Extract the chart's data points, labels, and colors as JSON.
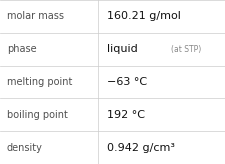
{
  "rows": [
    {
      "label": "molar mass",
      "value": "160.21 g/mol",
      "value2": null
    },
    {
      "label": "phase",
      "value": "liquid",
      "value2": "(at STP)"
    },
    {
      "label": "melting point",
      "value": "−63 °C",
      "value2": null
    },
    {
      "label": "boiling point",
      "value": "192 °C",
      "value2": null
    },
    {
      "label": "density",
      "value": "0.942 g/cm³",
      "value2": null
    }
  ],
  "bg_color": "#ffffff",
  "line_color": "#cccccc",
  "label_color": "#505050",
  "value_color": "#111111",
  "value2_color": "#888888",
  "label_fontsize": 7.0,
  "value_fontsize": 8.0,
  "value2_fontsize": 5.5,
  "col_split": 0.435,
  "fig_width": 2.26,
  "fig_height": 1.64,
  "dpi": 100
}
